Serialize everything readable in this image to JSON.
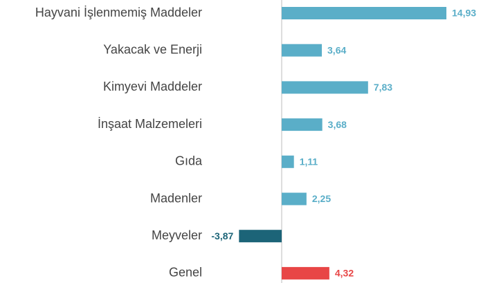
{
  "chart_data": {
    "type": "bar",
    "orientation": "horizontal",
    "categories": [
      "Hayvani İşlenmemiş Maddeler",
      "Yakacak ve Enerji",
      "Kimyevi Maddeler",
      "İnşaat Malzemeleri",
      "Gıda",
      "Madenler",
      "Meyveler",
      "Genel"
    ],
    "values": [
      14.93,
      3.64,
      7.83,
      3.68,
      1.11,
      2.25,
      -3.87,
      4.32
    ],
    "value_labels": [
      "14,93",
      "3,64",
      "7,83",
      "3,68",
      "1,11",
      "2,25",
      "-3,87",
      "4,32"
    ],
    "colors": [
      "#5aaec8",
      "#5aaec8",
      "#5aaec8",
      "#5aaec8",
      "#5aaec8",
      "#5aaec8",
      "#1c6478",
      "#e84646"
    ]
  }
}
